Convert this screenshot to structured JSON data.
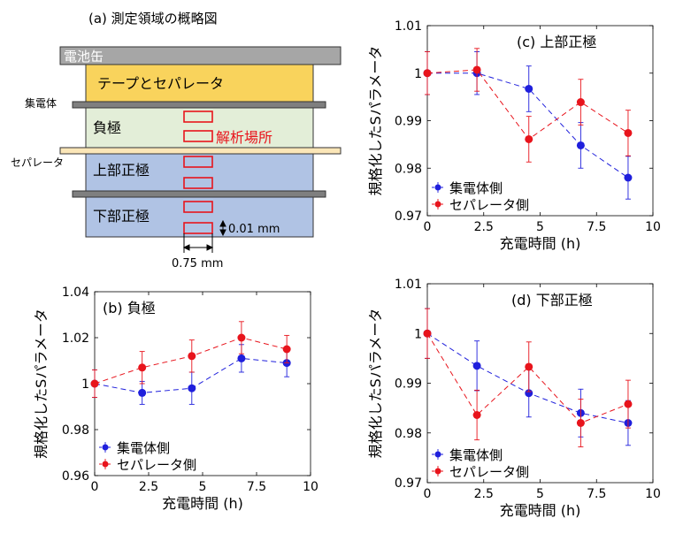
{
  "diagram": {
    "title": "(a) 測定領域の概略図",
    "can_label": "電池缶",
    "tape_label": "テープとセパレータ",
    "collector_label": "集電体",
    "anode_label": "負極",
    "analysis_label": "解析場所",
    "separator_label": "セパレータ",
    "upper_cathode_label": "上部正極",
    "lower_cathode_label": "下部正極",
    "height_dim": "0.01 mm",
    "width_dim": "0.75 mm",
    "colors": {
      "can": "#a6a6a6",
      "tape": "#f9d35c",
      "anode": "#e3eed8",
      "cathode": "#b0c3e4",
      "separator": "#fbe6b8",
      "collector": "#7f7f7f",
      "analysis_box": "#e8141c"
    }
  },
  "chart_data": [
    {
      "id": "b",
      "type": "line",
      "title": "(b) 負極",
      "xlabel": "充電時間 (h)",
      "ylabel": "規格化したSパラメータ",
      "xlim": [
        0,
        10
      ],
      "ylim": [
        0.96,
        1.04
      ],
      "xticks": [
        0,
        2.5,
        5,
        7.5,
        10
      ],
      "yticks": [
        0.96,
        0.98,
        1,
        1.02,
        1.04
      ],
      "xtick_labels": [
        "0",
        "2.5",
        "5",
        "7.5",
        "10"
      ],
      "ytick_labels": [
        "0.96",
        "0.98",
        "1",
        "1.02",
        "1.04"
      ],
      "legend_position": "bottom-left",
      "series": [
        {
          "name": "集電体側",
          "color": "#1f1fdc",
          "x": [
            0,
            2.2,
            4.5,
            6.8,
            8.9
          ],
          "y": [
            1.0,
            0.996,
            0.998,
            1.011,
            1.009
          ],
          "err": [
            0.006,
            0.005,
            0.007,
            0.006,
            0.006
          ]
        },
        {
          "name": "セパレータ側",
          "color": "#e8141c",
          "x": [
            0,
            2.2,
            4.5,
            6.8,
            8.9
          ],
          "y": [
            1.0,
            1.007,
            1.012,
            1.02,
            1.015
          ],
          "err": [
            0.006,
            0.007,
            0.007,
            0.007,
            0.006
          ]
        }
      ]
    },
    {
      "id": "c",
      "type": "line",
      "title": "(c) 上部正極",
      "xlabel": "充電時間 (h)",
      "ylabel": "規格化したSパラメータ",
      "xlim": [
        0,
        10
      ],
      "ylim": [
        0.97,
        1.01
      ],
      "xticks": [
        0,
        2.5,
        5,
        7.5,
        10
      ],
      "yticks": [
        0.97,
        0.98,
        0.99,
        1,
        1.01
      ],
      "xtick_labels": [
        "0",
        "2.5",
        "5",
        "7.5",
        "10"
      ],
      "ytick_labels": [
        "0.97",
        "0.98",
        "0.99",
        "1",
        "1.01"
      ],
      "legend_position": "bottom-left",
      "series": [
        {
          "name": "集電体側",
          "color": "#1f1fdc",
          "x": [
            0,
            2.2,
            4.5,
            6.8,
            8.9
          ],
          "y": [
            1.0,
            1.0,
            0.9967,
            0.9848,
            0.978
          ],
          "err": [
            0.0045,
            0.0045,
            0.0048,
            0.0048,
            0.0045
          ]
        },
        {
          "name": "セパレータ側",
          "color": "#e8141c",
          "x": [
            0,
            2.2,
            4.5,
            6.8,
            8.9
          ],
          "y": [
            1.0,
            1.0007,
            0.9861,
            0.9939,
            0.9874
          ],
          "err": [
            0.0045,
            0.0045,
            0.0048,
            0.0048,
            0.0048
          ]
        }
      ]
    },
    {
      "id": "d",
      "type": "line",
      "title": "(d) 下部正極",
      "xlabel": "充電時間 (h)",
      "ylabel": "規格化したSパラメータ",
      "xlim": [
        0,
        10
      ],
      "ylim": [
        0.97,
        1.01
      ],
      "xticks": [
        0,
        2.5,
        5,
        7.5,
        10
      ],
      "yticks": [
        0.97,
        0.98,
        0.99,
        1,
        1.01
      ],
      "xtick_labels": [
        "0",
        "2.5",
        "5",
        "7.5",
        "10"
      ],
      "ytick_labels": [
        "0.97",
        "0.98",
        "0.99",
        "1",
        "1.01"
      ],
      "legend_position": "bottom-left",
      "series": [
        {
          "name": "集電体側",
          "color": "#1f1fdc",
          "x": [
            0,
            2.2,
            4.5,
            6.8,
            8.9
          ],
          "y": [
            1.0,
            0.9935,
            0.988,
            0.984,
            0.982
          ],
          "err": [
            0.005,
            0.005,
            0.0048,
            0.0048,
            0.0045
          ]
        },
        {
          "name": "セパレータ側",
          "color": "#e8141c",
          "x": [
            0,
            2.2,
            4.5,
            6.8,
            8.9
          ],
          "y": [
            1.0,
            0.9836,
            0.9933,
            0.982,
            0.9858
          ],
          "err": [
            0.005,
            0.005,
            0.005,
            0.0048,
            0.0048
          ]
        }
      ]
    }
  ]
}
